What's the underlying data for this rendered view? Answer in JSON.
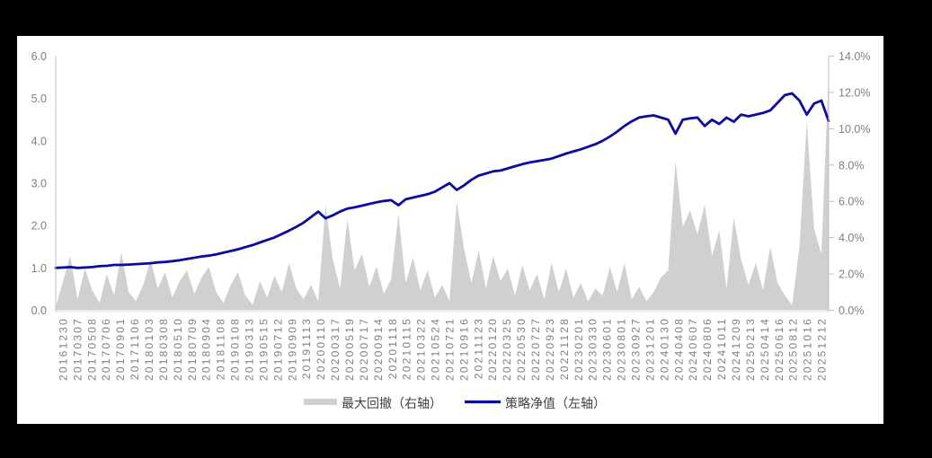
{
  "chart": {
    "left_axis": {
      "ticks": [
        "6.0",
        "5.0",
        "4.0",
        "3.0",
        "2.0",
        "1.0",
        "0.0"
      ]
    },
    "right_axis": {
      "ticks": [
        "14.0%",
        "12.0%",
        "10.0%",
        "8.0%",
        "6.0%",
        "4.0%",
        "2.0%",
        "0.0%"
      ]
    },
    "legend": [
      {
        "label": "最大回撤（右轴）",
        "swatch": "area",
        "color": "#d0d0d0"
      },
      {
        "label": "策略净值（左轴）",
        "swatch": "line",
        "color": "#0b0b9d"
      }
    ],
    "colors": {
      "nav_line": "#0b0b9d",
      "drawdown_fill": "#d0d0d0",
      "axis_line": "#c0c0c0",
      "axis_text": "#7f7f7f",
      "panel_bg": "#ffffff",
      "canvas_bg": "#000000"
    }
  },
  "chart_data": {
    "type": "line+area combo",
    "title": "",
    "xlabel": "",
    "ylabel_left": "",
    "ylabel_right": "",
    "grid": false,
    "legend_position": "bottom",
    "left_ylim": [
      0,
      6
    ],
    "right_ylim_percent": [
      0,
      14
    ],
    "categories": [
      "20161230",
      "20170307",
      "20170508",
      "20170706",
      "20170901",
      "20171106",
      "20180103",
      "20180308",
      "20180510",
      "20180709",
      "20180904",
      "20181108",
      "20190108",
      "20190313",
      "20190515",
      "20190712",
      "20190909",
      "20191113",
      "20200110",
      "20200317",
      "20200519",
      "20200717",
      "20200914",
      "20201118",
      "20210115",
      "20210322",
      "20210524",
      "20210721",
      "20210916",
      "20211123",
      "20220120",
      "20220325",
      "20220530",
      "20220727",
      "20220923",
      "20221128",
      "20230201",
      "20230330",
      "20230601",
      "20230801",
      "20230927",
      "20231201",
      "20240130",
      "20240408",
      "20240607",
      "20240806",
      "20241011",
      "20241209",
      "20250213",
      "20250414",
      "20250616",
      "20250812",
      "20251016",
      "20251212"
    ],
    "points_per_category": 2,
    "note": "values are sampled at half-category resolution (107 points spanning the 54 categories)",
    "series": [
      {
        "name": "策略净值（左轴）",
        "type": "line",
        "axis": "left",
        "color": "#0b0b9d",
        "values": [
          1.0,
          1.01,
          1.02,
          1.0,
          1.01,
          1.02,
          1.04,
          1.05,
          1.07,
          1.07,
          1.08,
          1.09,
          1.1,
          1.11,
          1.13,
          1.14,
          1.16,
          1.18,
          1.21,
          1.24,
          1.27,
          1.29,
          1.32,
          1.36,
          1.4,
          1.44,
          1.49,
          1.54,
          1.6,
          1.66,
          1.72,
          1.8,
          1.88,
          1.97,
          2.07,
          2.2,
          2.33,
          2.17,
          2.24,
          2.33,
          2.4,
          2.43,
          2.47,
          2.51,
          2.55,
          2.58,
          2.6,
          2.48,
          2.62,
          2.66,
          2.7,
          2.74,
          2.8,
          2.9,
          3.0,
          2.84,
          2.95,
          3.08,
          3.18,
          3.23,
          3.28,
          3.3,
          3.35,
          3.4,
          3.45,
          3.49,
          3.52,
          3.55,
          3.58,
          3.64,
          3.7,
          3.75,
          3.8,
          3.86,
          3.92,
          4.0,
          4.1,
          4.22,
          4.35,
          4.46,
          4.55,
          4.58,
          4.6,
          4.55,
          4.5,
          4.17,
          4.5,
          4.53,
          4.55,
          4.35,
          4.5,
          4.4,
          4.55,
          4.45,
          4.62,
          4.58,
          4.62,
          4.66,
          4.72,
          4.9,
          5.08,
          5.12,
          4.95,
          4.62,
          4.88,
          4.95,
          4.47
        ]
      },
      {
        "name": "最大回撤（右轴）",
        "type": "area",
        "axis": "right",
        "color": "#d0d0d0",
        "values_percent": [
          0.2,
          1.6,
          3.0,
          0.6,
          2.3,
          1.1,
          0.4,
          2.0,
          0.8,
          3.2,
          1.0,
          0.5,
          1.4,
          2.8,
          1.2,
          2.1,
          0.7,
          1.6,
          2.2,
          0.9,
          1.8,
          2.4,
          1.0,
          0.4,
          1.4,
          2.1,
          0.8,
          0.3,
          1.6,
          0.7,
          1.9,
          1.0,
          2.6,
          1.2,
          0.6,
          1.4,
          0.5,
          5.8,
          2.8,
          1.2,
          5.0,
          2.2,
          3.1,
          1.3,
          2.4,
          0.9,
          1.7,
          5.3,
          1.5,
          2.9,
          1.1,
          2.2,
          0.7,
          1.4,
          0.5,
          6.0,
          3.4,
          1.5,
          3.3,
          1.2,
          3.0,
          1.6,
          2.3,
          0.8,
          2.5,
          1.1,
          2.0,
          0.6,
          2.6,
          1.0,
          2.3,
          0.7,
          1.5,
          0.5,
          1.2,
          0.8,
          2.4,
          1.0,
          2.6,
          0.6,
          1.3,
          0.5,
          1.0,
          1.8,
          2.2,
          8.2,
          4.6,
          5.5,
          4.2,
          5.8,
          3.0,
          4.4,
          1.2,
          5.1,
          2.8,
          1.4,
          2.6,
          1.1,
          3.5,
          1.5,
          0.8,
          0.3,
          3.5,
          10.4,
          4.5,
          3.1,
          13.1
        ]
      }
    ]
  }
}
